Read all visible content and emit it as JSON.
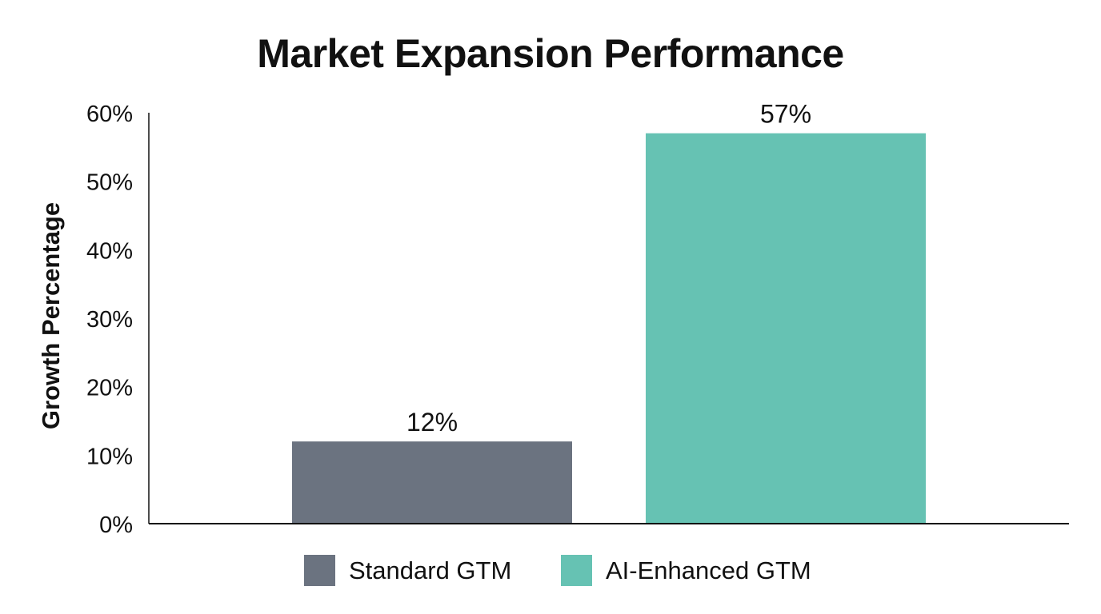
{
  "chart_data": {
    "type": "bar",
    "title": "Market Expansion Performance",
    "xlabel": "",
    "ylabel": "Growth Percentage",
    "ylim": [
      0,
      60
    ],
    "yticks": [
      "0%",
      "10%",
      "20%",
      "30%",
      "40%",
      "50%",
      "60%"
    ],
    "grid": false,
    "legend_position": "bottom",
    "categories": [
      "Standard GTM",
      "AI-Enhanced GTM"
    ],
    "values": [
      12,
      57
    ],
    "data_labels": [
      "12%",
      "57%"
    ],
    "colors": [
      "#6b7380",
      "#66c2b3"
    ],
    "legend": [
      "Standard GTM",
      "AI-Enhanced GTM"
    ]
  }
}
